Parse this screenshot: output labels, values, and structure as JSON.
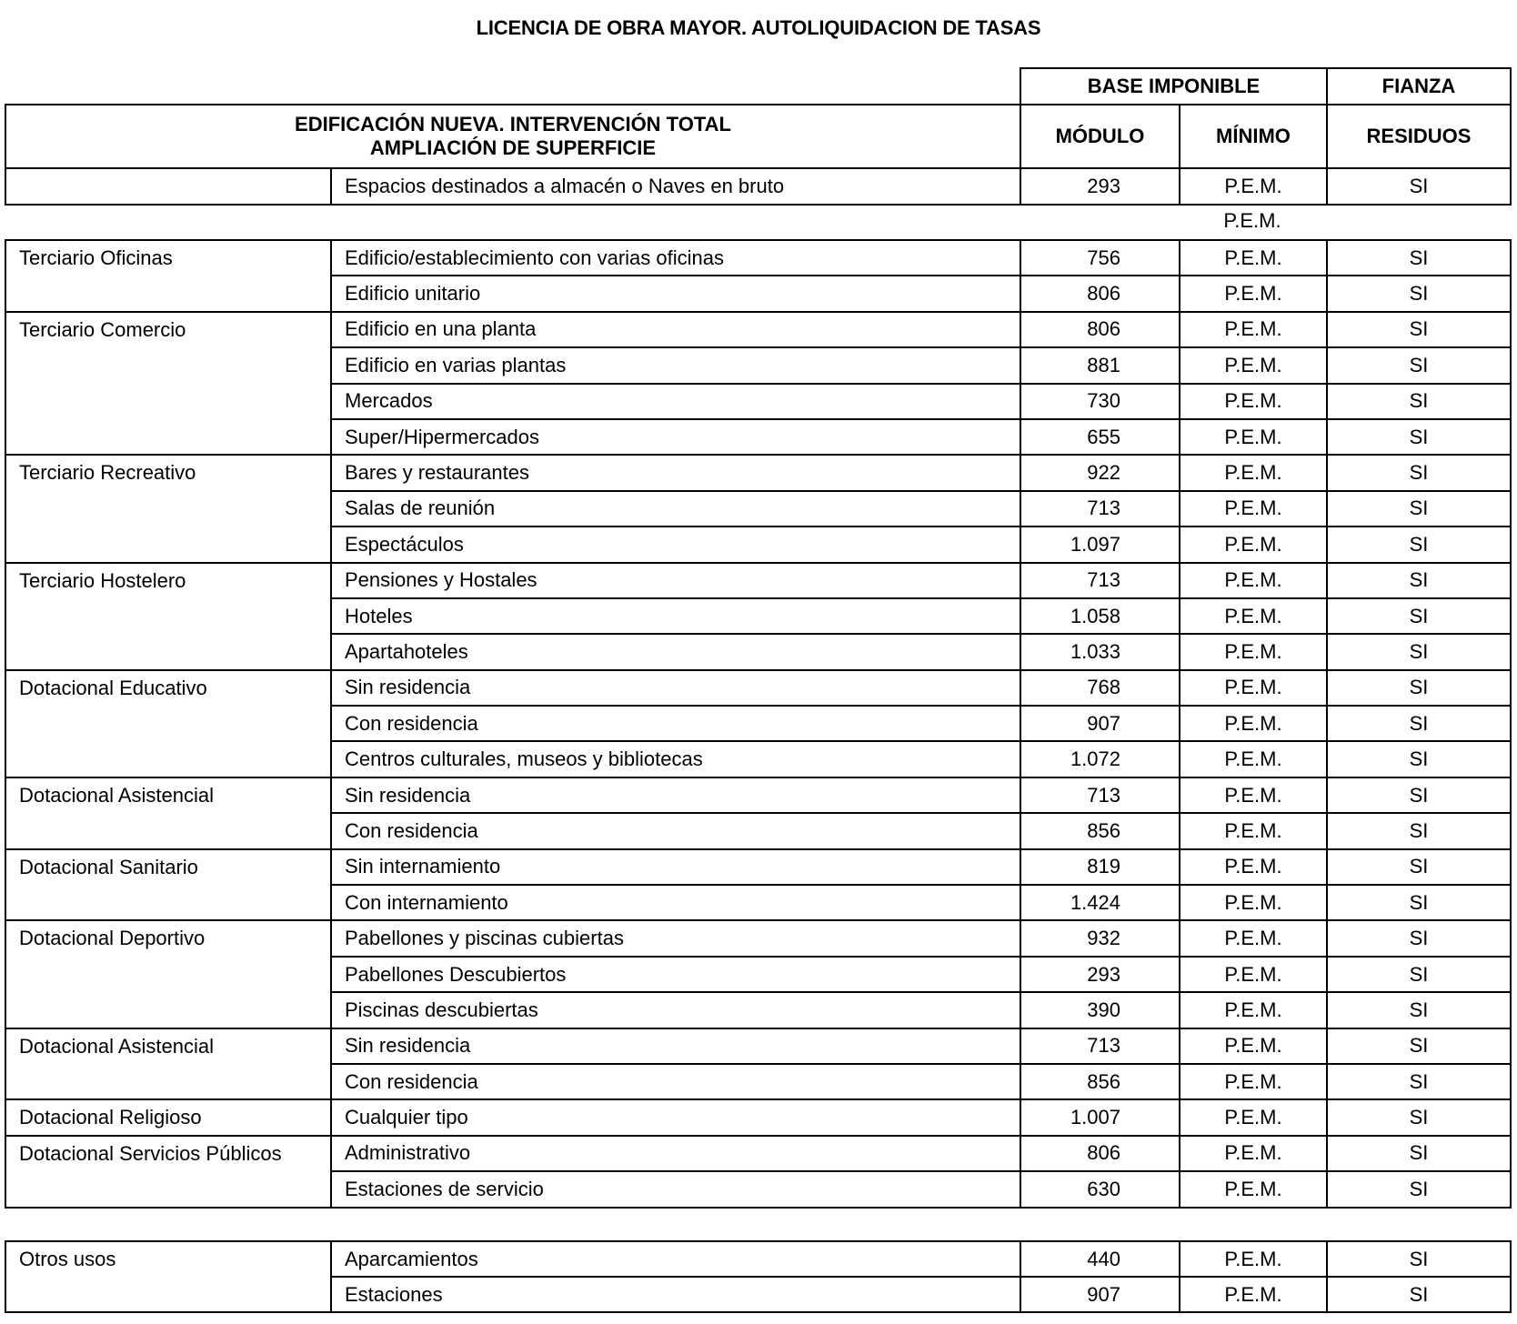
{
  "title": "LICENCIA DE OBRA MAYOR. AUTOLIQUIDACION DE TASAS",
  "header": {
    "base_imponible": "BASE IMPONIBLE",
    "fianza": "FIANZA",
    "section_line1": "EDIFICACIÓN NUEVA. INTERVENCIÓN TOTAL",
    "section_line2": "AMPLIACIÓN DE SUPERFICIE",
    "modulo": "MÓDULO",
    "minimo": "MÍNIMO",
    "residuos": "RESIDUOS"
  },
  "first_row": {
    "category": "",
    "desc": "Espacios destinados a almacén o Naves en bruto",
    "modulo": "293",
    "minimo": "P.E.M.",
    "fianza": "SI"
  },
  "orphan_minimo": "P.E.M.",
  "groups": [
    {
      "category": "Terciario Oficinas",
      "items": [
        {
          "desc": "Edificio/establecimiento con varias oficinas",
          "modulo": "756",
          "minimo": "P.E.M.",
          "fianza": "SI"
        },
        {
          "desc": "Edificio unitario",
          "modulo": "806",
          "minimo": "P.E.M.",
          "fianza": "SI"
        }
      ]
    },
    {
      "category": "Terciario Comercio",
      "items": [
        {
          "desc": "Edificio en una planta",
          "modulo": "806",
          "minimo": "P.E.M.",
          "fianza": "SI"
        },
        {
          "desc": "Edificio en varias plantas",
          "modulo": "881",
          "minimo": "P.E.M.",
          "fianza": "SI"
        },
        {
          "desc": "Mercados",
          "modulo": "730",
          "minimo": "P.E.M.",
          "fianza": "SI"
        },
        {
          "desc": "Super/Hipermercados",
          "modulo": "655",
          "minimo": "P.E.M.",
          "fianza": "SI"
        }
      ]
    },
    {
      "category": "Terciario Recreativo",
      "items": [
        {
          "desc": "Bares y restaurantes",
          "modulo": "922",
          "minimo": "P.E.M.",
          "fianza": "SI"
        },
        {
          "desc": "Salas de reunión",
          "modulo": "713",
          "minimo": "P.E.M.",
          "fianza": "SI"
        },
        {
          "desc": "Espectáculos",
          "modulo": "1.097",
          "minimo": "P.E.M.",
          "fianza": "SI"
        }
      ]
    },
    {
      "category": "Terciario Hostelero",
      "items": [
        {
          "desc": "Pensiones y Hostales",
          "modulo": "713",
          "minimo": "P.E.M.",
          "fianza": "SI"
        },
        {
          "desc": "Hoteles",
          "modulo": "1.058",
          "minimo": "P.E.M.",
          "fianza": "SI"
        },
        {
          "desc": "Apartahoteles",
          "modulo": "1.033",
          "minimo": "P.E.M.",
          "fianza": "SI"
        }
      ]
    },
    {
      "category": "Dotacional Educativo",
      "items": [
        {
          "desc": "Sin residencia",
          "modulo": "768",
          "minimo": "P.E.M.",
          "fianza": "SI"
        },
        {
          "desc": "Con residencia",
          "modulo": "907",
          "minimo": "P.E.M.",
          "fianza": "SI"
        },
        {
          "desc": "Centros culturales, museos y bibliotecas",
          "modulo": "1.072",
          "minimo": "P.E.M.",
          "fianza": "SI"
        }
      ]
    },
    {
      "category": "Dotacional Asistencial",
      "items": [
        {
          "desc": "Sin residencia",
          "modulo": "713",
          "minimo": "P.E.M.",
          "fianza": "SI"
        },
        {
          "desc": "Con residencia",
          "modulo": "856",
          "minimo": "P.E.M.",
          "fianza": "SI"
        }
      ]
    },
    {
      "category": "Dotacional Sanitario",
      "items": [
        {
          "desc": "Sin internamiento",
          "modulo": "819",
          "minimo": "P.E.M.",
          "fianza": "SI"
        },
        {
          "desc": "Con internamiento",
          "modulo": "1.424",
          "minimo": "P.E.M.",
          "fianza": "SI"
        }
      ]
    },
    {
      "category": "Dotacional Deportivo",
      "items": [
        {
          "desc": "Pabellones y piscinas cubiertas",
          "modulo": "932",
          "minimo": "P.E.M.",
          "fianza": "SI"
        },
        {
          "desc": "Pabellones Descubiertos",
          "modulo": "293",
          "minimo": "P.E.M.",
          "fianza": "SI"
        },
        {
          "desc": "Piscinas descubiertas",
          "modulo": "390",
          "minimo": "P.E.M.",
          "fianza": "SI"
        }
      ]
    },
    {
      "category": "Dotacional Asistencial",
      "items": [
        {
          "desc": "Sin residencia",
          "modulo": "713",
          "minimo": "P.E.M.",
          "fianza": "SI"
        },
        {
          "desc": "Con residencia",
          "modulo": "856",
          "minimo": "P.E.M.",
          "fianza": "SI"
        }
      ]
    },
    {
      "category": "Dotacional Religioso",
      "items": [
        {
          "desc": "Cualquier tipo",
          "modulo": "1.007",
          "minimo": "P.E.M.",
          "fianza": "SI"
        }
      ]
    },
    {
      "category": "Dotacional Servicios Públicos",
      "items": [
        {
          "desc": "Administrativo",
          "modulo": "806",
          "minimo": "P.E.M.",
          "fianza": "SI"
        },
        {
          "desc": "Estaciones de servicio",
          "modulo": "630",
          "minimo": "P.E.M.",
          "fianza": "SI"
        }
      ]
    }
  ],
  "other_groups": [
    {
      "category": "Otros usos",
      "items": [
        {
          "desc": "Aparcamientos",
          "modulo": "440",
          "minimo": "P.E.M.",
          "fianza": "SI"
        },
        {
          "desc": "Estaciones",
          "modulo": "907",
          "minimo": "P.E.M.",
          "fianza": "SI"
        }
      ]
    }
  ]
}
